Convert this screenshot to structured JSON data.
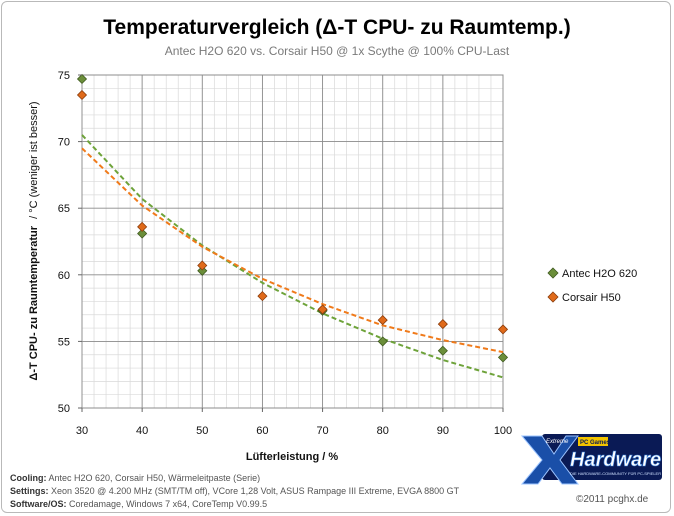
{
  "chart_data": {
    "type": "scatter",
    "title": "Temperaturvergleich (Δ-T CPU- zu Raumtemp.)",
    "subtitle": "Antec H2O 620 vs. Corsair H50 @ 1x Scythe @  100% CPU-Last",
    "xlabel": "Lüfterleistung  / %",
    "ylabel_bold": "Δ-T CPU- zu Raumtemperatur",
    "ylabel_normal": "/ °C (weniger ist besser)",
    "xlim": [
      30,
      100
    ],
    "ylim": [
      50,
      75
    ],
    "x_ticks": [
      "30",
      "40",
      "50",
      "60",
      "70",
      "80",
      "90",
      "100"
    ],
    "y_ticks": [
      "50",
      "55",
      "60",
      "65",
      "70",
      "75"
    ],
    "grid": true,
    "legend_position": "right",
    "series": [
      {
        "name": "Antec H2O 620",
        "color": "#6b8e3a",
        "x": [
          30,
          40,
          50,
          60,
          70,
          80,
          90,
          100
        ],
        "y": [
          74.7,
          63.1,
          60.3,
          null,
          57.3,
          55.0,
          54.3,
          53.8
        ],
        "trendline": {
          "type": "power",
          "color": "#6ea33a",
          "x": [
            30,
            40,
            50,
            60,
            70,
            80,
            90,
            100
          ],
          "y": [
            70.5,
            65.7,
            62.2,
            59.4,
            57.1,
            55.2,
            53.6,
            52.3
          ]
        }
      },
      {
        "name": "Corsair H50",
        "color": "#e06a1a",
        "x": [
          30,
          40,
          50,
          60,
          70,
          80,
          90,
          100
        ],
        "y": [
          73.5,
          63.6,
          60.7,
          58.4,
          57.4,
          56.6,
          56.3,
          55.9
        ],
        "trendline": {
          "type": "power",
          "color": "#f07a1a",
          "x": [
            30,
            40,
            50,
            60,
            70,
            80,
            90,
            100
          ],
          "y": [
            69.5,
            65.2,
            62.1,
            59.7,
            57.8,
            56.2,
            55.1,
            54.2
          ]
        }
      }
    ]
  },
  "footer": {
    "cooling_label": "Cooling:",
    "cooling_value": "Antec H2O 620, Corsair H50, Wärmeleitpaste (Serie)",
    "settings_label": "Settings:",
    "settings_value": "Xeon 3520 @ 4.200 MHz (SMT/TM off), VCore 1,28 Volt, ASUS Rampage III Extreme, EVGA 8800 GT",
    "software_label": "Software/OS:",
    "software_value": "Coredamage, Windows 7 x64, CoreTemp V0.99.5",
    "copyright": "©2011 pcghx.de"
  },
  "logo": {
    "top_text": "Extreme",
    "badge_text": "PC Games",
    "main_text": "Hardware",
    "tagline": "DIE HARDWARE-COMMUNITY FÜR PC-SPIELER",
    "colors": {
      "dark": "#0a1a55",
      "accent": "#f2c300",
      "blue": "#3a7fd8"
    }
  }
}
